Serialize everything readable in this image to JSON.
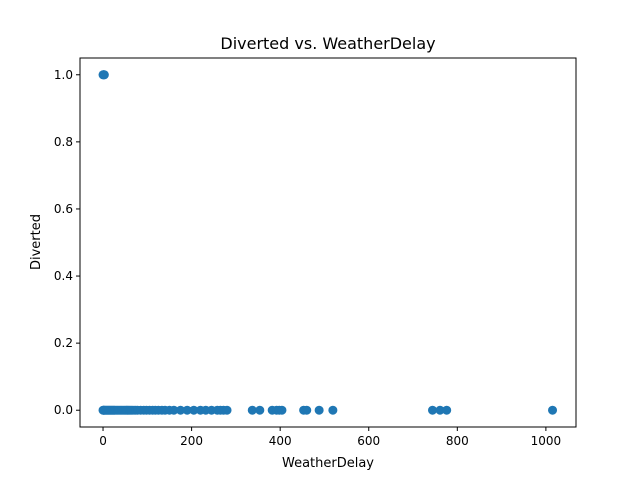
{
  "chart_data": {
    "type": "scatter",
    "title": "Diverted vs. WeatherDelay",
    "xlabel": "WeatherDelay",
    "ylabel": "Diverted",
    "xlim": [
      -52,
      1068
    ],
    "ylim": [
      -0.05,
      1.05
    ],
    "xticks": [
      0,
      200,
      400,
      600,
      800,
      1000
    ],
    "xtick_labels": [
      "0",
      "200",
      "400",
      "600",
      "800",
      "1000"
    ],
    "yticks": [
      0.0,
      0.2,
      0.4,
      0.6,
      0.8,
      1.0
    ],
    "ytick_labels": [
      "0.0",
      "0.2",
      "0.4",
      "0.6",
      "0.8",
      "1.0"
    ],
    "grid": false,
    "marker_color": "#1f77b4",
    "series": [
      {
        "points": [
          [
            0,
            1
          ],
          [
            1,
            1
          ],
          [
            2,
            1
          ],
          [
            3,
            1
          ],
          [
            0,
            0
          ],
          [
            1,
            0
          ],
          [
            2,
            0
          ],
          [
            3,
            0
          ],
          [
            5,
            0
          ],
          [
            7,
            0
          ],
          [
            9,
            0
          ],
          [
            11,
            0
          ],
          [
            13,
            0
          ],
          [
            15,
            0
          ],
          [
            17,
            0
          ],
          [
            19,
            0
          ],
          [
            21,
            0
          ],
          [
            23,
            0
          ],
          [
            25,
            0
          ],
          [
            27,
            0
          ],
          [
            30,
            0
          ],
          [
            33,
            0
          ],
          [
            36,
            0
          ],
          [
            39,
            0
          ],
          [
            42,
            0
          ],
          [
            45,
            0
          ],
          [
            48,
            0
          ],
          [
            51,
            0
          ],
          [
            54,
            0
          ],
          [
            57,
            0
          ],
          [
            60,
            0
          ],
          [
            63,
            0
          ],
          [
            66,
            0
          ],
          [
            70,
            0
          ],
          [
            74,
            0
          ],
          [
            78,
            0
          ],
          [
            85,
            0
          ],
          [
            92,
            0
          ],
          [
            98,
            0
          ],
          [
            105,
            0
          ],
          [
            112,
            0
          ],
          [
            118,
            0
          ],
          [
            125,
            0
          ],
          [
            133,
            0
          ],
          [
            140,
            0
          ],
          [
            150,
            0
          ],
          [
            160,
            0
          ],
          [
            175,
            0
          ],
          [
            190,
            0
          ],
          [
            205,
            0
          ],
          [
            220,
            0
          ],
          [
            232,
            0
          ],
          [
            245,
            0
          ],
          [
            258,
            0
          ],
          [
            265,
            0
          ],
          [
            272,
            0
          ],
          [
            280,
            0
          ],
          [
            337,
            0
          ],
          [
            354,
            0
          ],
          [
            382,
            0
          ],
          [
            392,
            0
          ],
          [
            398,
            0
          ],
          [
            404,
            0
          ],
          [
            453,
            0
          ],
          [
            460,
            0
          ],
          [
            488,
            0
          ],
          [
            519,
            0
          ],
          [
            744,
            0
          ],
          [
            761,
            0
          ],
          [
            776,
            0
          ],
          [
            1015,
            0
          ]
        ]
      }
    ]
  }
}
